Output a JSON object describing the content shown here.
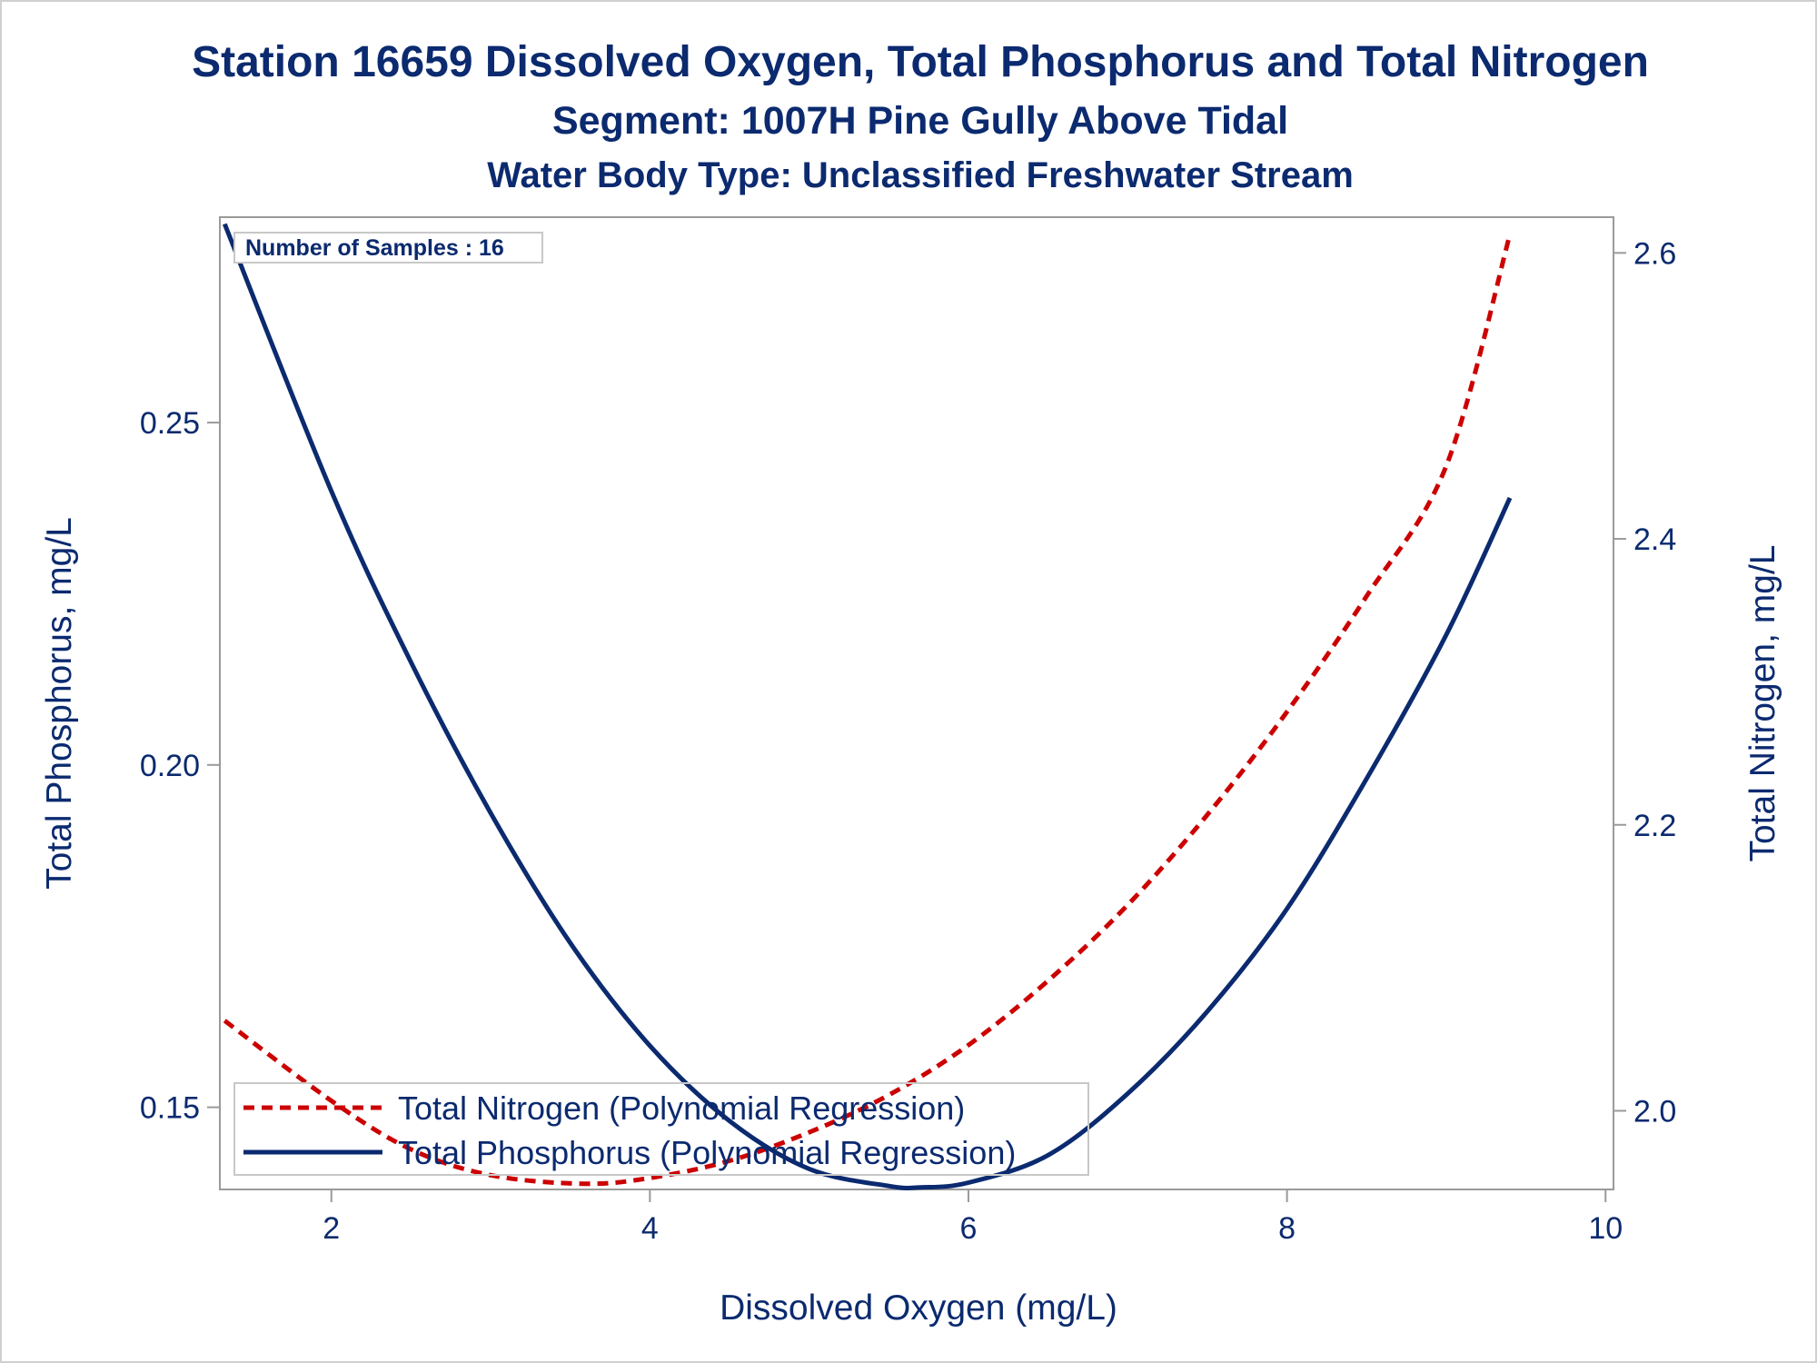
{
  "chart_data": {
    "type": "line",
    "title": "Station 16659  Dissolved Oxygen, Total Phosphorus and Total Nitrogen",
    "subtitle": "Segment: 1007H  Pine Gully Above Tidal",
    "subtitle2": "Water Body Type: Unclassified Freshwater Stream",
    "xlabel": "Dissolved Oxygen (mg/L)",
    "ylabel": "Total Phosphorus, mg/L",
    "y2label": "Total Nitrogen, mg/L",
    "xlim": [
      1.3,
      10.05
    ],
    "ylim": [
      0.138,
      0.28
    ],
    "y2lim": [
      1.945,
      2.625
    ],
    "xticks": [
      "2",
      "4",
      "6",
      "8",
      "10"
    ],
    "yticks": [
      "0.15",
      "0.20",
      "0.25"
    ],
    "y2ticks": [
      "2.0",
      "2.2",
      "2.4",
      "2.6"
    ],
    "inset_label": "Number of Samples : 16",
    "legend_position": "bottom-left",
    "series": [
      {
        "name": "Total Nitrogen (Polynomial Regression)",
        "axis": "right",
        "color": "#cc0000",
        "style": "dashed",
        "x": [
          1.33,
          2.0,
          2.5,
          3.0,
          3.58,
          4.0,
          4.5,
          5.0,
          5.5,
          6.0,
          6.5,
          7.0,
          7.5,
          8.0,
          8.5,
          9.0,
          9.4
        ],
        "values": [
          2.063,
          2.007,
          1.973,
          1.955,
          1.949,
          1.953,
          1.965,
          1.985,
          2.011,
          2.046,
          2.091,
          2.144,
          2.207,
          2.279,
          2.36,
          2.451,
          2.613
        ]
      },
      {
        "name": "Total Phosphorus (Polynomial Regression)",
        "axis": "left",
        "color": "#0b2a6f",
        "style": "solid",
        "x": [
          1.33,
          2.0,
          2.5,
          3.0,
          3.5,
          4.0,
          4.5,
          5.0,
          5.5,
          5.7,
          6.0,
          6.5,
          7.0,
          7.5,
          8.0,
          8.5,
          9.0,
          9.4
        ],
        "values": [
          0.279,
          0.24,
          0.215,
          0.193,
          0.174,
          0.159,
          0.148,
          0.141,
          0.1385,
          0.1383,
          0.139,
          0.143,
          0.152,
          0.164,
          0.179,
          0.198,
          0.219,
          0.239
        ]
      }
    ]
  }
}
